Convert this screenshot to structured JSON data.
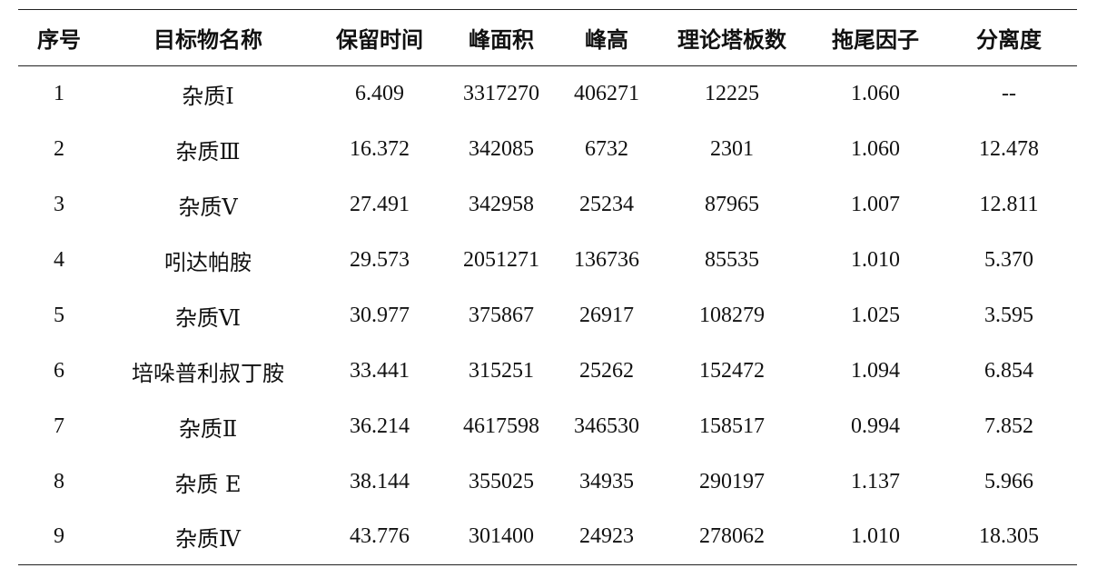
{
  "table": {
    "headers": [
      "序号",
      "目标物名称",
      "保留时间",
      "峰面积",
      "峰高",
      "理论塔板数",
      "拖尾因子",
      "分离度"
    ],
    "rows": [
      [
        "1",
        "杂质Ⅰ",
        "6.409",
        "3317270",
        "406271",
        "12225",
        "1.060",
        "--"
      ],
      [
        "2",
        "杂质Ⅲ",
        "16.372",
        "342085",
        "6732",
        "2301",
        "1.060",
        "12.478"
      ],
      [
        "3",
        "杂质Ⅴ",
        "27.491",
        "342958",
        "25234",
        "87965",
        "1.007",
        "12.811"
      ],
      [
        "4",
        "吲达帕胺",
        "29.573",
        "2051271",
        "136736",
        "85535",
        "1.010",
        "5.370"
      ],
      [
        "5",
        "杂质Ⅵ",
        "30.977",
        "375867",
        "26917",
        "108279",
        "1.025",
        "3.595"
      ],
      [
        "6",
        "培哚普利叔丁胺",
        "33.441",
        "315251",
        "25262",
        "152472",
        "1.094",
        "6.854"
      ],
      [
        "7",
        "杂质Ⅱ",
        "36.214",
        "4617598",
        "346530",
        "158517",
        "0.994",
        "7.852"
      ],
      [
        "8",
        "杂质 E",
        "38.144",
        "355025",
        "34935",
        "290197",
        "1.137",
        "5.966"
      ],
      [
        "9",
        "杂质Ⅳ",
        "43.776",
        "301400",
        "24923",
        "278062",
        "1.010",
        "18.305"
      ]
    ]
  }
}
